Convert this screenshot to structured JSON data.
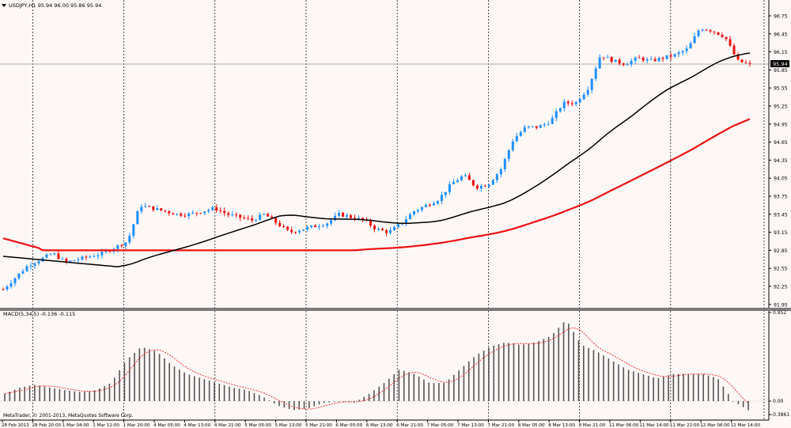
{
  "colors": {
    "background": "#fdf7f6",
    "bull_candle": "#1e90ff",
    "bear_candle": "#ee1111",
    "ma_fast": "#000000",
    "ma_slow": "#ee1111",
    "macd_bar": "#555555",
    "macd_signal": "#ee2222",
    "grid": "#000000",
    "bid_line": "#b0b0b0",
    "price_tag_bg": "#000000",
    "price_tag_text": "#ffffff"
  },
  "main_chart": {
    "symbol_header": "USDJPY,H1  95.94 96.00 95.86 95.94",
    "current_price_label": "95.94",
    "price_axis_labels": [
      "96.75",
      "96.45",
      "96.15",
      "95.85",
      "95.55",
      "95.25",
      "94.95",
      "94.65",
      "94.35",
      "94.05",
      "93.75",
      "93.45",
      "93.15",
      "92.85",
      "92.55",
      "92.25",
      "91.95"
    ]
  },
  "macd_panel": {
    "header": "MACD(5,34,5) -0.136 -0.115",
    "axis_labels": [
      "0.952",
      "0.00",
      "-0.3861"
    ],
    "copyright": "MetaTrader, © 2001-2013, MetaQuotes Software Corp."
  },
  "time_axis": {
    "labels": [
      "28 Feb 2013",
      "28 Feb 20:00",
      "1 Mar 04:00",
      "1 Mar 12:00",
      "1 Mar 20:00",
      "4 Mar 05:00",
      "4 Mar 13:00",
      "4 Mar 21:00",
      "5 Mar 05:00",
      "5 Mar 13:00",
      "5 Mar 21:00",
      "6 Mar 05:00",
      "6 Mar 13:00",
      "6 Mar 21:00",
      "7 Mar 05:00",
      "7 Mar 13:00",
      "7 Mar 21:00",
      "8 Mar 05:00",
      "8 Mar 13:00",
      "8 Mar 21:00",
      "11 Mar 06:00",
      "11 Mar 14:00",
      "11 Mar 22:00",
      "12 Mar 06:00",
      "12 Mar 14:00"
    ]
  },
  "chart_data": [
    {
      "type": "candlestick",
      "title": "USDJPY,H1",
      "ylim": [
        91.95,
        96.75
      ],
      "grid": true,
      "price_path_estimate": [
        92.2,
        92.4,
        92.6,
        92.7,
        92.8,
        92.65,
        92.7,
        92.75,
        92.8,
        92.9,
        93.0,
        93.6,
        93.55,
        93.5,
        93.45,
        93.45,
        93.5,
        93.55,
        93.45,
        93.4,
        93.35,
        93.45,
        93.3,
        93.15,
        93.2,
        93.25,
        93.3,
        93.45,
        93.4,
        93.35,
        93.2,
        93.15,
        93.3,
        93.5,
        93.6,
        93.7,
        93.95,
        94.1,
        93.9,
        93.95,
        94.2,
        94.7,
        94.9,
        94.9,
        95.0,
        95.3,
        95.3,
        95.55,
        96.1,
        96.0,
        95.95,
        96.05,
        96.0,
        96.05,
        96.1,
        96.2,
        96.55,
        96.5,
        96.4,
        96.0,
        95.94
      ]
    },
    {
      "type": "bar",
      "title": "MACD(5,34,5)",
      "ylim": [
        -0.3861,
        0.952
      ],
      "histogram_path_estimate": [
        0.08,
        0.15,
        0.18,
        0.15,
        0.12,
        0.1,
        0.12,
        0.2,
        0.45,
        0.6,
        0.55,
        0.4,
        0.3,
        0.25,
        0.2,
        0.15,
        0.12,
        0.05,
        -0.05,
        -0.1,
        -0.08,
        -0.02,
        0.0,
        -0.02,
        0.08,
        0.2,
        0.35,
        0.3,
        0.2,
        0.2,
        0.35,
        0.5,
        0.6,
        0.65,
        0.62,
        0.65,
        0.72,
        0.9,
        0.62,
        0.55,
        0.45,
        0.35,
        0.3,
        0.25,
        0.3,
        0.3,
        0.3,
        0.25,
        0.0,
        -0.1
      ],
      "signal_lag_bars": 4
    }
  ]
}
